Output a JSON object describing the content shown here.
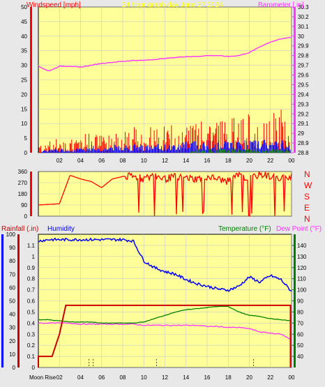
{
  "window": {
    "title": "24 hour graph day   June 27 2024"
  },
  "colors": {
    "background": "#e8e8e8",
    "plot_bg": "#ffff99",
    "grid": "#c8c8c8",
    "wind_avg": "#0000ff",
    "wind_gust": "#ff0000",
    "wind_low": "#008000",
    "barometer": "#ff33ff",
    "direction": "#ff0000",
    "humidity": "#0000ff",
    "rainfall": "#cc0000",
    "temperature": "#008000",
    "dewpoint": "#ff33ff"
  },
  "chart_data": [
    {
      "type": "line",
      "title": "24 hour graph day   June 27 2024",
      "left_axis_label": "Windspeed [mph]",
      "right_axis_label": "Barometer [.in]",
      "x_ticks": [
        "02",
        "04",
        "06",
        "08",
        "10",
        "12",
        "14",
        "16",
        "18",
        "20",
        "22",
        "00"
      ],
      "left_ylim": [
        0,
        50
      ],
      "left_ticks": [
        "0",
        "5",
        "10",
        "15",
        "20",
        "25",
        "30",
        "35",
        "40",
        "45",
        "50"
      ],
      "right_ylim": [
        28.8,
        30.3
      ],
      "right_ticks": [
        "28.8",
        "28.9",
        "29",
        "29.1",
        "29.2",
        "29.3",
        "29.4",
        "29.5",
        "29.6",
        "29.7",
        "29.8",
        "29.9",
        "30",
        "30.1",
        "30.2",
        "30.3"
      ],
      "x_hours": [
        0,
        1,
        2,
        3,
        4,
        5,
        6,
        7,
        8,
        9,
        10,
        11,
        12,
        13,
        14,
        15,
        16,
        17,
        18,
        19,
        20,
        21,
        22,
        23,
        24
      ],
      "series": [
        {
          "values": [
            29.69,
            29.64,
            29.69,
            29.69,
            29.68,
            29.7,
            29.72,
            29.73,
            29.74,
            29.75,
            29.75,
            29.76,
            29.77,
            29.78,
            29.79,
            29.79,
            29.8,
            29.8,
            29.79,
            29.8,
            29.83,
            29.89,
            29.94,
            29.97,
            29.99
          ]
        },
        {
          "values": [
            2,
            4,
            3,
            4,
            4,
            5,
            4,
            5,
            5,
            6,
            6,
            6,
            7,
            6,
            7,
            7,
            8,
            8,
            8,
            8,
            9,
            9,
            9,
            10,
            9
          ]
        },
        {
          "values": [
            0,
            1,
            1,
            1,
            1,
            2,
            1,
            2,
            2,
            2,
            2,
            2,
            2,
            2,
            3,
            3,
            3,
            3,
            3,
            3,
            3,
            3,
            3,
            3,
            3
          ]
        },
        {
          "values": [
            0,
            0,
            0,
            0,
            0,
            0,
            0,
            0,
            0,
            0,
            0,
            0,
            0,
            0,
            0,
            1,
            1,
            1,
            1,
            1,
            1,
            1,
            1,
            1,
            1
          ]
        }
      ]
    },
    {
      "type": "line",
      "y_ticks": [
        "0",
        "90",
        "180",
        "270",
        "360"
      ],
      "direction_labels": [
        "N",
        "W",
        "S",
        "E",
        "N"
      ],
      "ylim": [
        0,
        360
      ],
      "x_hours": [
        0,
        1,
        2,
        3,
        4,
        5,
        6,
        7,
        8,
        9,
        10,
        11,
        12,
        13,
        14,
        15,
        16,
        17,
        18,
        19,
        20,
        21,
        22,
        23,
        24
      ],
      "series": [
        {
          "values": [
            90,
            95,
            100,
            330,
            300,
            280,
            230,
            300,
            320,
            320,
            300,
            330,
            300,
            320,
            310,
            300,
            320,
            300,
            280,
            330,
            300,
            340,
            320,
            300,
            330
          ]
        }
      ]
    },
    {
      "type": "line",
      "left_axis_label": "Rainfall (.in)",
      "left_axis_label2": "Humidity",
      "right_axis_label": "Temperature (°F)",
      "right_axis_label2": "Dew Point (°F)",
      "moon_label": "Moon Rise",
      "x_ticks": [
        "02",
        "04",
        "06",
        "08",
        "10",
        "12",
        "14",
        "16",
        "18",
        "20",
        "22",
        "00"
      ],
      "rain_ticks": [
        "0",
        "0.1",
        "0.2",
        "0.3",
        "0.4",
        "0.5",
        "0.6",
        "0.7",
        "0.8",
        "0.9",
        "1",
        "1.1"
      ],
      "hum_ticks": [
        "0",
        "10",
        "20",
        "30",
        "40",
        "50",
        "60",
        "70",
        "80",
        "90",
        "100"
      ],
      "temp_ticks": [
        "40",
        "50",
        "60",
        "70",
        "80",
        "90",
        "100",
        "110",
        "120",
        "130",
        "140"
      ],
      "rain_ylim": [
        0,
        1.2
      ],
      "hum_ylim": [
        0,
        100
      ],
      "temp_ylim": [
        30,
        150
      ],
      "x_hours": [
        0,
        1,
        2,
        3,
        4,
        5,
        6,
        7,
        8,
        9,
        10,
        11,
        12,
        13,
        14,
        15,
        16,
        17,
        18,
        19,
        20,
        21,
        22,
        23,
        24
      ],
      "series": [
        {
          "values": [
            95,
            96,
            96,
            96,
            96,
            96,
            96,
            96,
            96,
            95,
            80,
            75,
            72,
            70,
            66,
            63,
            61,
            59,
            58,
            61,
            68,
            64,
            69,
            66,
            57
          ]
        },
        {
          "values": [
            0.1,
            0.1,
            0.3,
            0.56,
            0.56,
            0.56,
            0.56,
            0.56,
            0.56,
            0.56,
            0.56,
            0.56,
            0.56,
            0.56,
            0.56,
            0.56,
            0.56,
            0.56,
            0.56,
            0.56,
            0.56,
            0.56,
            0.56,
            0.56,
            0.0
          ]
        },
        {
          "values": [
            73,
            73,
            72,
            71,
            71,
            71,
            70,
            70,
            70,
            70,
            71,
            74,
            77,
            80,
            82,
            83,
            84,
            85,
            85,
            80,
            77,
            76,
            74,
            73,
            72
          ]
        },
        {
          "values": [
            70,
            70,
            70,
            70,
            69,
            69,
            69,
            69,
            69,
            69,
            68,
            68,
            68,
            68,
            68,
            68,
            67,
            67,
            66,
            66,
            65,
            62,
            61,
            60,
            55
          ]
        }
      ]
    }
  ]
}
